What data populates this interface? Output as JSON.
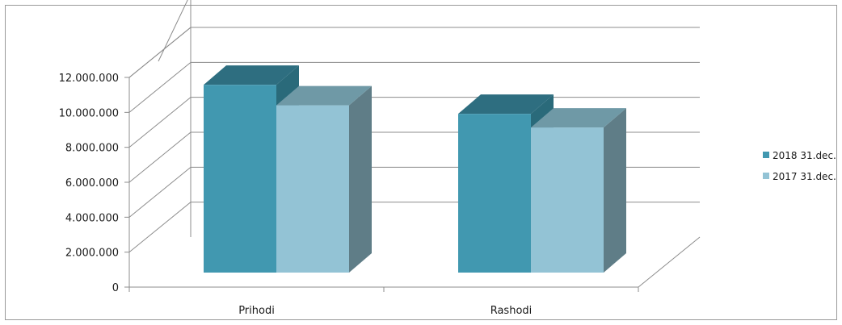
{
  "chart_data": {
    "type": "bar",
    "style": "3d-clustered-column",
    "categories": [
      "Prihodi",
      "Rashodi"
    ],
    "series": [
      {
        "name": "2018 31.dec.",
        "values": [
          11000000,
          9300000
        ],
        "color": "#4198b0",
        "top_color": "#2e6e80",
        "side_color": "#2a6a7a"
      },
      {
        "name": "2017 31.dec.",
        "values": [
          9800000,
          8500000
        ],
        "color": "#93c3d5",
        "top_color": "#6f99a6",
        "side_color": "#5f7d87"
      }
    ],
    "y_ticks": [
      "0",
      "2.000.000",
      "4.000.000",
      "6.000.000",
      "8.000.000",
      "10.000.000",
      "12.000.000"
    ],
    "ylim": [
      0,
      12000000
    ],
    "grid": true,
    "legend_position": "right"
  }
}
